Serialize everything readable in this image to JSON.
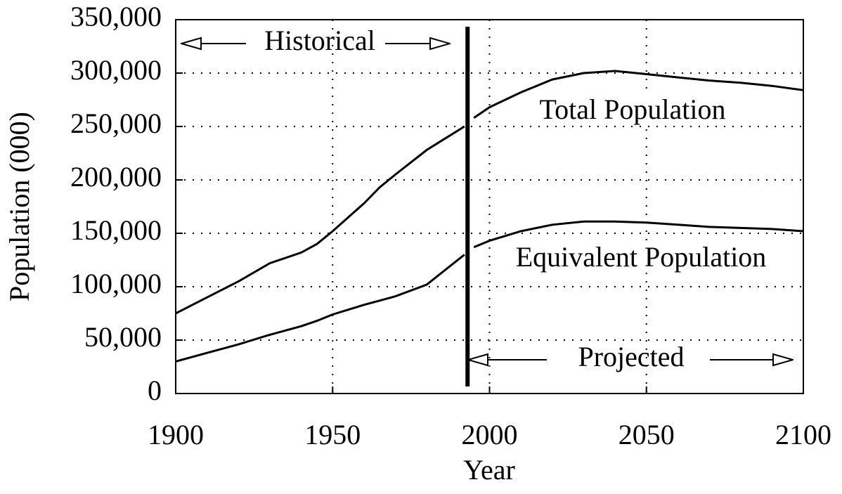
{
  "chart_data": {
    "type": "line",
    "x_label": "Year",
    "y_label": "Population (000)",
    "x": [
      1900,
      1910,
      1920,
      1930,
      1940,
      1945,
      1950,
      1960,
      1965,
      1970,
      1980,
      1992,
      1994,
      1995,
      2000,
      2010,
      2020,
      2030,
      2040,
      2050,
      2060,
      2070,
      2080,
      2090,
      2100
    ],
    "series": [
      {
        "name": "Total Population",
        "color": "#000000",
        "values": [
          75000,
          90000,
          105000,
          122000,
          132000,
          140000,
          152000,
          178000,
          193000,
          205000,
          228000,
          250000,
          null,
          258000,
          268000,
          282000,
          294000,
          300000,
          302000,
          299000,
          296000,
          293000,
          291000,
          288000,
          284000
        ]
      },
      {
        "name": "Equivalent Population",
        "color": "#000000",
        "values": [
          30000,
          38000,
          46000,
          55000,
          63000,
          68000,
          74000,
          83000,
          87000,
          91000,
          102000,
          130000,
          null,
          137000,
          143000,
          152000,
          158000,
          161000,
          161000,
          160000,
          158000,
          156000,
          155000,
          154000,
          152000
        ]
      }
    ],
    "annotations": {
      "historical": "Historical",
      "projected": "Projected"
    },
    "divider_x": 1993,
    "xlim": [
      1900,
      2100
    ],
    "xticks": [
      1900,
      1950,
      2000,
      2050,
      2100
    ],
    "ylim": [
      0,
      350000
    ],
    "yticks": [
      0,
      {
        "value": 50000,
        "label": "50,000"
      },
      {
        "value": 100000,
        "label": "100,000"
      },
      {
        "value": 150000,
        "label": "150,000"
      },
      {
        "value": 200000,
        "label": "200,000"
      },
      {
        "value": 250000,
        "label": "250,000"
      },
      {
        "value": 300000,
        "label": "300,000"
      },
      {
        "value": 350000,
        "label": "350,000"
      }
    ],
    "grid": true
  }
}
